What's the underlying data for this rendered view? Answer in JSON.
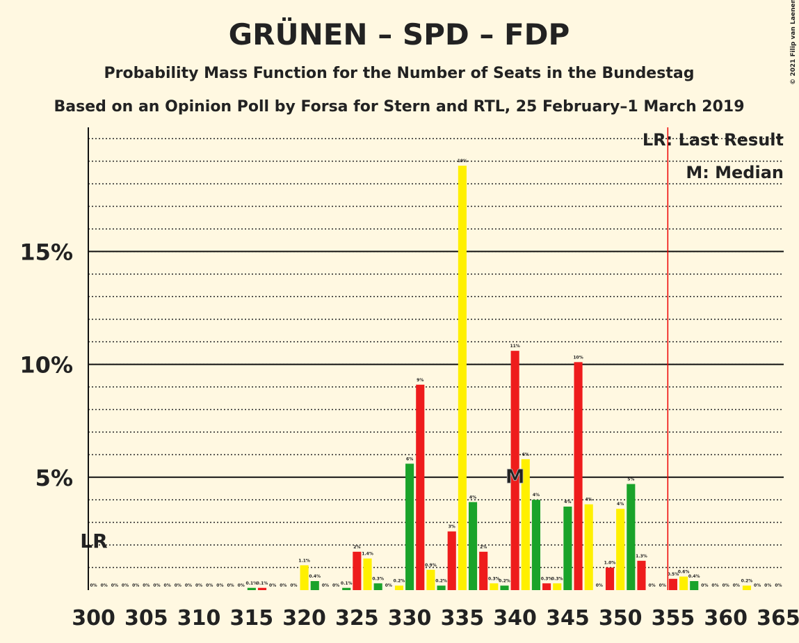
{
  "chart_data": {
    "type": "bar",
    "title": "GRÜNEN – SPD – FDP",
    "subtitle": "Probability Mass Function for the Number of Seats in the Bundestag",
    "subtitle2": "Based on an Opinion Poll by Forsa for Stern and RTL, 25 February–1 March 2019",
    "copyright": "© 2021 Filip van Laenen",
    "legend_lr": "LR: Last Result",
    "legend_median": "M: Median",
    "lr_label": "LR",
    "median_label": "M",
    "last_result": 355,
    "median": 340,
    "color_cycle": [
      "#1aa32a",
      "#ee1c1c",
      "#fff000"
    ],
    "x": [
      300,
      301,
      302,
      303,
      304,
      305,
      306,
      307,
      308,
      309,
      310,
      311,
      312,
      313,
      314,
      315,
      316,
      317,
      318,
      319,
      320,
      321,
      322,
      323,
      324,
      325,
      326,
      327,
      328,
      329,
      330,
      331,
      332,
      333,
      334,
      335,
      336,
      337,
      338,
      339,
      340,
      341,
      342,
      343,
      344,
      345,
      346,
      347,
      348,
      349,
      350,
      351,
      352,
      353,
      354,
      355,
      356,
      357,
      358,
      359,
      360,
      361,
      362,
      363,
      364,
      365
    ],
    "values": [
      0,
      0,
      0,
      0,
      0,
      0,
      0,
      0,
      0,
      0,
      0,
      0,
      0,
      0,
      0,
      0.1,
      0.1,
      0,
      0,
      0,
      1.1,
      0.4,
      0,
      0,
      0.1,
      1.7,
      1.4,
      0.3,
      0,
      0.2,
      5.6,
      9.1,
      0.9,
      0.2,
      2.6,
      18.8,
      3.9,
      1.7,
      0.3,
      0.2,
      10.6,
      5.8,
      4.0,
      0.3,
      0.3,
      3.7,
      10.1,
      3.8,
      0,
      1.0,
      3.6,
      4.7,
      1.3,
      0,
      0,
      0.5,
      0.6,
      0.4,
      0,
      0,
      0,
      0,
      0.2,
      0,
      0,
      0
    ],
    "value_labels": [
      "0%",
      "0%",
      "0%",
      "0%",
      "0%",
      "0%",
      "0%",
      "0%",
      "0%",
      "0%",
      "0%",
      "0%",
      "0%",
      "0%",
      "0%",
      "0.1%",
      "0.1%",
      "0%",
      "0%",
      "0%",
      "1.1%",
      "0.4%",
      "0%",
      "0%",
      "0.1%",
      "2%",
      "1.4%",
      "0.3%",
      "0%",
      "0.2%",
      "6%",
      "9%",
      "0.9%",
      "0.2%",
      "3%",
      "19%",
      "4%",
      "2%",
      "0.3%",
      "0.2%",
      "11%",
      "6%",
      "4%",
      "0.3%",
      "0.3%",
      "4%",
      "10%",
      "4%",
      "0%",
      "1.0%",
      "4%",
      "5%",
      "1.3%",
      "0%",
      "0%",
      "0.5%",
      "0.6%",
      "0.4%",
      "0%",
      "0%",
      "0%",
      "0%",
      "0.2%",
      "0%",
      "0%",
      "0%"
    ],
    "xlim": [
      299.5,
      365.5
    ],
    "xticks": [
      300,
      305,
      310,
      315,
      320,
      325,
      330,
      335,
      340,
      345,
      350,
      355,
      360,
      365
    ],
    "ylim": [
      0,
      20.5
    ],
    "yticks": [
      {
        "value": 5,
        "label": "5%"
      },
      {
        "value": 10,
        "label": "10%"
      },
      {
        "value": 15,
        "label": "15%"
      }
    ],
    "minor_grid_step": 1
  }
}
